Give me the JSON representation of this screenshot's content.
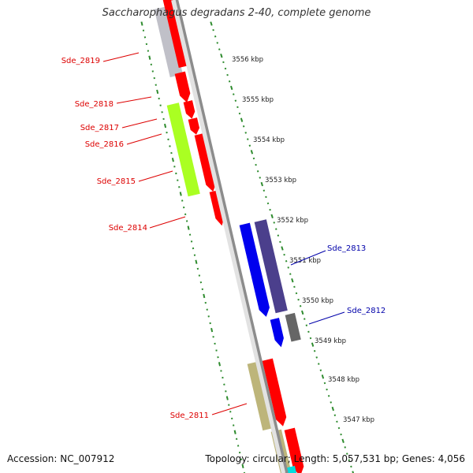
{
  "title": "Saccharophagus degradans 2-40, complete genome",
  "footer": {
    "accession": "Accession: NC_007912",
    "summary": "Topology: circular; Length: 5,057,531 bp; Genes: 4,056"
  },
  "colors": {
    "backbone": "#8c8c8c",
    "tick": "#2e8b2e",
    "label_forward_strand": "#dd0000",
    "label_reverse_strand": "#0000aa"
  },
  "scale_labels": [
    "3556 kbp",
    "3555 kbp",
    "3554 kbp",
    "3553 kbp",
    "3552 kbp",
    "3551 kbp",
    "3550 kbp",
    "3549 kbp",
    "3548 kbp",
    "3547 kbp"
  ],
  "gene_labels": [
    {
      "name": "Sde_2819",
      "color": "#dd0000"
    },
    {
      "name": "Sde_2818",
      "color": "#dd0000"
    },
    {
      "name": "Sde_2817",
      "color": "#dd0000"
    },
    {
      "name": "Sde_2816",
      "color": "#dd0000"
    },
    {
      "name": "Sde_2815",
      "color": "#dd0000"
    },
    {
      "name": "Sde_2814",
      "color": "#dd0000"
    },
    {
      "name": "Sde_2813",
      "color": "#0000aa"
    },
    {
      "name": "Sde_2812",
      "color": "#0000aa"
    },
    {
      "name": "Sde_2811",
      "color": "#dd0000"
    }
  ],
  "feature_colors": [
    "#c0c0c8",
    "#ff0000",
    "#aaff22",
    "#0000ee",
    "#4b3f8c",
    "#666666",
    "#bdb57a",
    "#00dddd"
  ]
}
